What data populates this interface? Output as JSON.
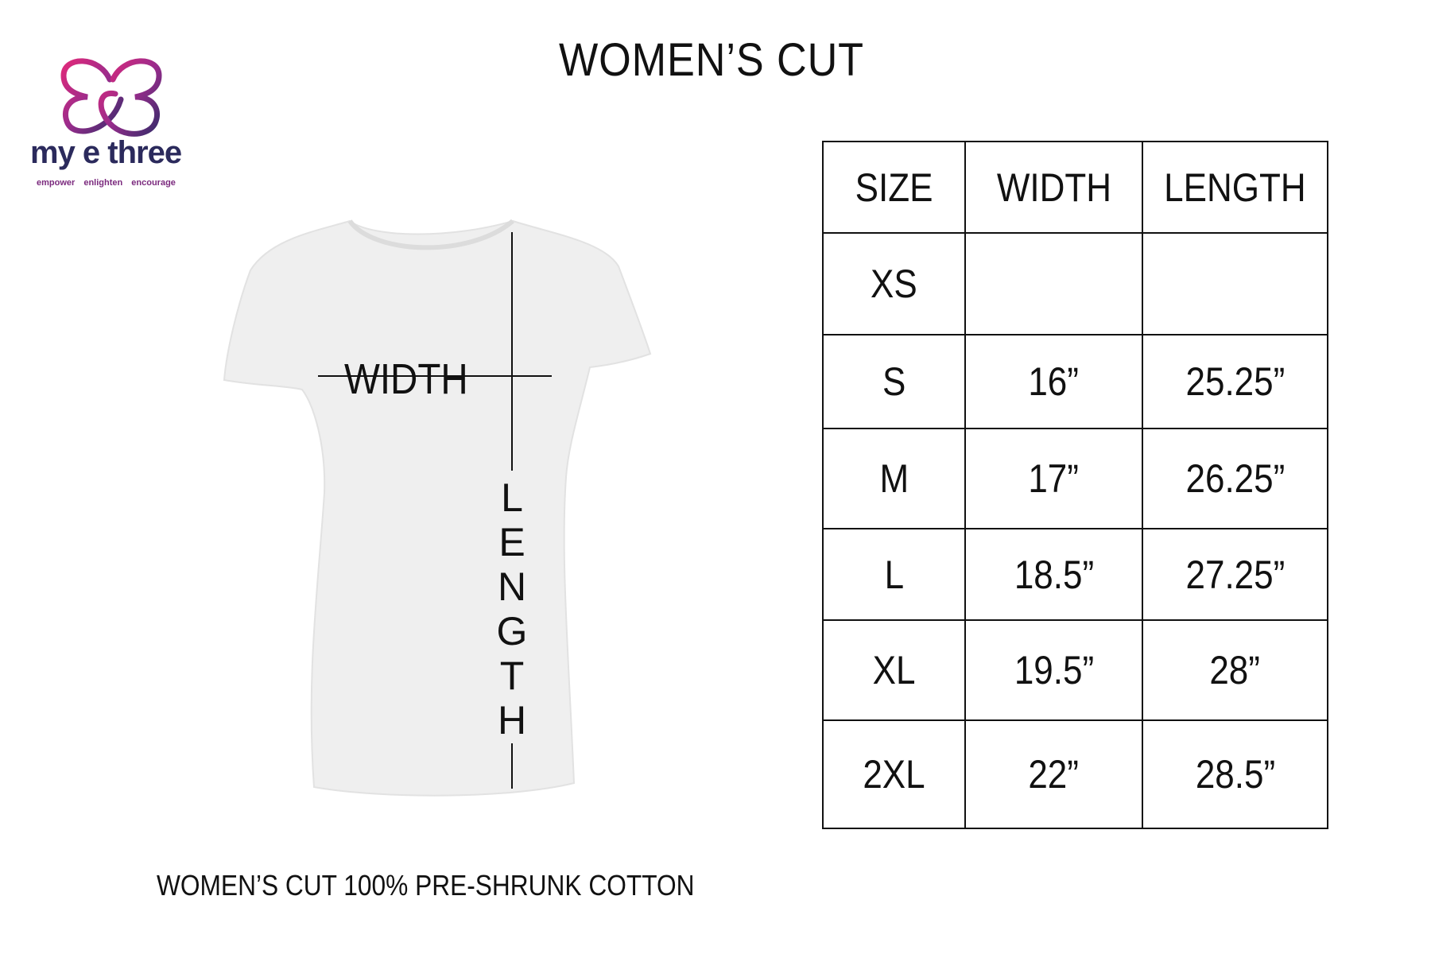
{
  "title": "WOMEN’S CUT",
  "logo": {
    "name": "my e three",
    "tagline": "empower   enlighten   encourage",
    "colors": [
      "#e0297a",
      "#8a2d8f",
      "#3a2d6e"
    ]
  },
  "shirt": {
    "width_label": "WIDTH",
    "length_letters": [
      "L",
      "E",
      "N",
      "G",
      "T",
      "H"
    ]
  },
  "table": {
    "headers": [
      "SIZE",
      "WIDTH",
      "LENGTH"
    ],
    "rows": [
      [
        "XS",
        "",
        ""
      ],
      [
        "S",
        "16”",
        "25.25”"
      ],
      [
        "M",
        "17”",
        "26.25”"
      ],
      [
        "L",
        "18.5”",
        "27.25”"
      ],
      [
        "XL",
        "19.5”",
        "28”"
      ],
      [
        "2XL",
        "22”",
        "28.5”"
      ]
    ]
  },
  "footer": "WOMEN’S CUT 100% PRE-SHRUNK COTTON"
}
